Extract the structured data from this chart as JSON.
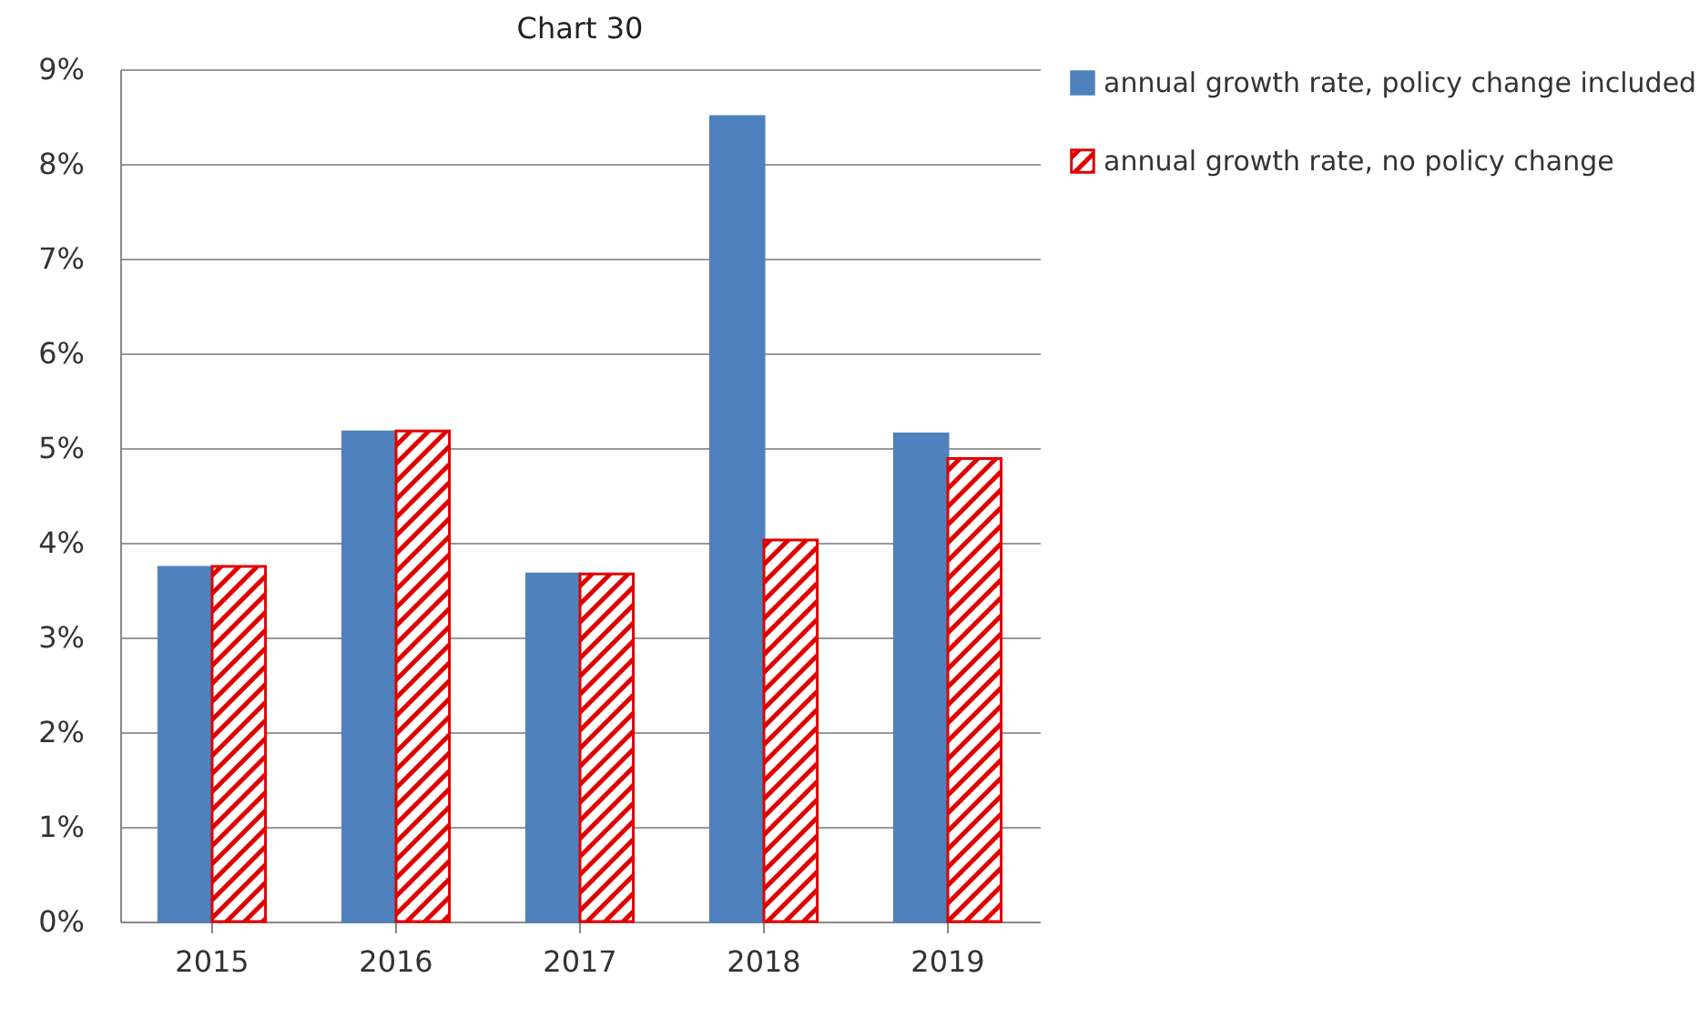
{
  "chart_data": {
    "type": "bar",
    "title": "Chart 30",
    "categories": [
      "2015",
      "2016",
      "2017",
      "2018",
      "2019"
    ],
    "series": [
      {
        "name": "annual growth rate, policy change included",
        "color": "#4f81bd",
        "values": [
          3.74,
          5.17,
          3.67,
          8.5,
          5.15
        ]
      },
      {
        "name": "annual growth rate, no policy change",
        "color": "#e00000",
        "values": [
          3.75,
          5.18,
          3.67,
          4.03,
          4.89
        ]
      }
    ],
    "ylim": [
      0,
      9
    ],
    "yticks": [
      {
        "value": 0,
        "label": "0%"
      },
      {
        "value": 1,
        "label": "1%"
      },
      {
        "value": 2,
        "label": "2%"
      },
      {
        "value": 3,
        "label": "3%"
      },
      {
        "value": 4,
        "label": "4%"
      },
      {
        "value": 5,
        "label": "5%"
      },
      {
        "value": 6,
        "label": "6%"
      },
      {
        "value": 7,
        "label": "7%"
      },
      {
        "value": 8,
        "label": "8%"
      },
      {
        "value": 9,
        "label": "9%"
      }
    ],
    "grid": "y",
    "legend": "right"
  }
}
